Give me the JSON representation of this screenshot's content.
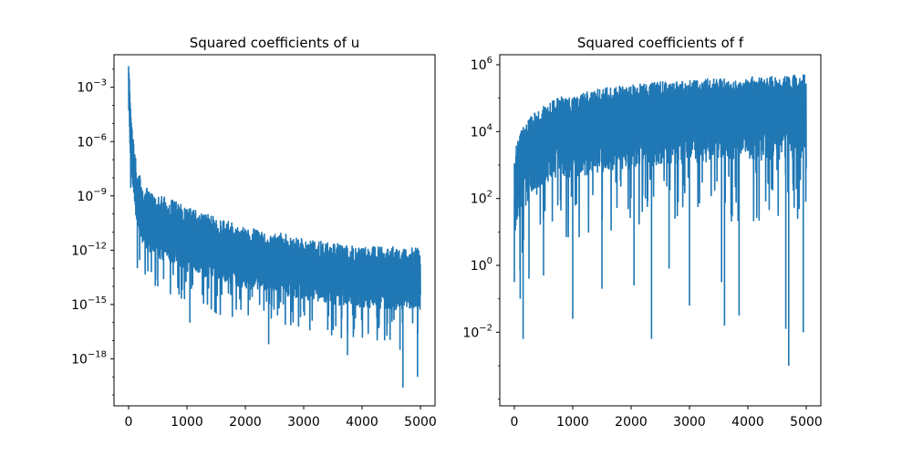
{
  "figure": {
    "background": "#ffffff",
    "line_color": "#1f77b4"
  },
  "chart_data": [
    {
      "type": "line",
      "title": "Squared coefficients of u",
      "xlabel": "",
      "ylabel": "",
      "yscale": "log",
      "xlim": [
        -250,
        5250
      ],
      "ylim_log10": [
        -20.6,
        -1.2
      ],
      "xticks": [
        0,
        1000,
        2000,
        3000,
        4000,
        5000
      ],
      "xtick_labels": [
        "0",
        "1000",
        "2000",
        "3000",
        "4000",
        "5000"
      ],
      "yticks_log10": [
        -18,
        -15,
        -12,
        -9,
        -6,
        -3
      ],
      "ytick_labels": [
        {
          "base": "10",
          "exp": "−18"
        },
        {
          "base": "10",
          "exp": "−15"
        },
        {
          "base": "10",
          "exp": "−12"
        },
        {
          "base": "10",
          "exp": "−9"
        },
        {
          "base": "10",
          "exp": "−6"
        },
        {
          "base": "10",
          "exp": "−3"
        }
      ],
      "grid": false,
      "legend": "none",
      "n_points": 5000,
      "envelope_upper_log10": [
        [
          0,
          -1.8
        ],
        [
          25,
          -3.2
        ],
        [
          60,
          -5.3
        ],
        [
          100,
          -6.5
        ],
        [
          150,
          -7.5
        ],
        [
          250,
          -8.4
        ],
        [
          400,
          -8.8
        ],
        [
          600,
          -9.0
        ],
        [
          1000,
          -9.6
        ],
        [
          1500,
          -10.2
        ],
        [
          2000,
          -10.7
        ],
        [
          2500,
          -11.0
        ],
        [
          3000,
          -11.3
        ],
        [
          3500,
          -11.6
        ],
        [
          4000,
          -11.8
        ],
        [
          4500,
          -11.8
        ],
        [
          5000,
          -11.9
        ]
      ],
      "envelope_typical_log10": [
        [
          0,
          -2.5
        ],
        [
          25,
          -5.0
        ],
        [
          60,
          -6.8
        ],
        [
          100,
          -8.2
        ],
        [
          150,
          -9.2
        ],
        [
          250,
          -10.2
        ],
        [
          400,
          -10.8
        ],
        [
          600,
          -11.1
        ],
        [
          1000,
          -11.7
        ],
        [
          1500,
          -12.2
        ],
        [
          2000,
          -12.6
        ],
        [
          2500,
          -12.9
        ],
        [
          3000,
          -13.2
        ],
        [
          3500,
          -13.5
        ],
        [
          4000,
          -13.7
        ],
        [
          4500,
          -13.8
        ],
        [
          5000,
          -13.8
        ]
      ],
      "dips": [
        [
          150,
          -13.0
        ],
        [
          500,
          -14.0
        ],
        [
          600,
          -13.6
        ],
        [
          1050,
          -16.0
        ],
        [
          1500,
          -15.5
        ],
        [
          2050,
          -15.6
        ],
        [
          2400,
          -17.2
        ],
        [
          2650,
          -15.0
        ],
        [
          3000,
          -15.4
        ],
        [
          3550,
          -16.2
        ],
        [
          3750,
          -17.8
        ],
        [
          3850,
          -16.8
        ],
        [
          4650,
          -17.5
        ],
        [
          4700,
          -19.6
        ],
        [
          4950,
          -19.0
        ]
      ]
    },
    {
      "type": "line",
      "title": "Squared coefficients of f",
      "xlabel": "",
      "ylabel": "",
      "yscale": "log",
      "xlim": [
        -250,
        5250
      ],
      "ylim_log10": [
        -4.2,
        6.3
      ],
      "xticks": [
        0,
        1000,
        2000,
        3000,
        4000,
        5000
      ],
      "xtick_labels": [
        "0",
        "1000",
        "2000",
        "3000",
        "4000",
        "5000"
      ],
      "yticks_log10": [
        -2,
        0,
        2,
        4,
        6
      ],
      "ytick_labels": [
        {
          "base": "10",
          "exp": "−2"
        },
        {
          "base": "10",
          "exp": "0"
        },
        {
          "base": "10",
          "exp": "2"
        },
        {
          "base": "10",
          "exp": "4"
        },
        {
          "base": "10",
          "exp": "6"
        }
      ],
      "grid": false,
      "legend": "none",
      "n_points": 5000,
      "envelope_upper_log10": [
        [
          0,
          3.5
        ],
        [
          100,
          4.0
        ],
        [
          300,
          4.5
        ],
        [
          700,
          5.0
        ],
        [
          1500,
          5.3
        ],
        [
          2500,
          5.5
        ],
        [
          3500,
          5.6
        ],
        [
          5000,
          5.7
        ]
      ],
      "envelope_typical_log10": [
        [
          0,
          2.0
        ],
        [
          100,
          3.0
        ],
        [
          300,
          3.5
        ],
        [
          700,
          4.0
        ],
        [
          1500,
          4.3
        ],
        [
          2500,
          4.5
        ],
        [
          3500,
          4.6
        ],
        [
          5000,
          4.7
        ]
      ],
      "dips": [
        [
          0,
          -0.5
        ],
        [
          100,
          -1.0
        ],
        [
          150,
          -2.2
        ],
        [
          250,
          -0.4
        ],
        [
          500,
          -0.3
        ],
        [
          1000,
          -1.6
        ],
        [
          1500,
          -0.7
        ],
        [
          2050,
          -0.6
        ],
        [
          2350,
          -2.2
        ],
        [
          2650,
          -0.1
        ],
        [
          3000,
          -1.2
        ],
        [
          3550,
          -0.5
        ],
        [
          3600,
          -1.8
        ],
        [
          3850,
          -1.5
        ],
        [
          4650,
          -1.9
        ],
        [
          4700,
          -3.0
        ],
        [
          4950,
          -2.0
        ]
      ]
    }
  ]
}
